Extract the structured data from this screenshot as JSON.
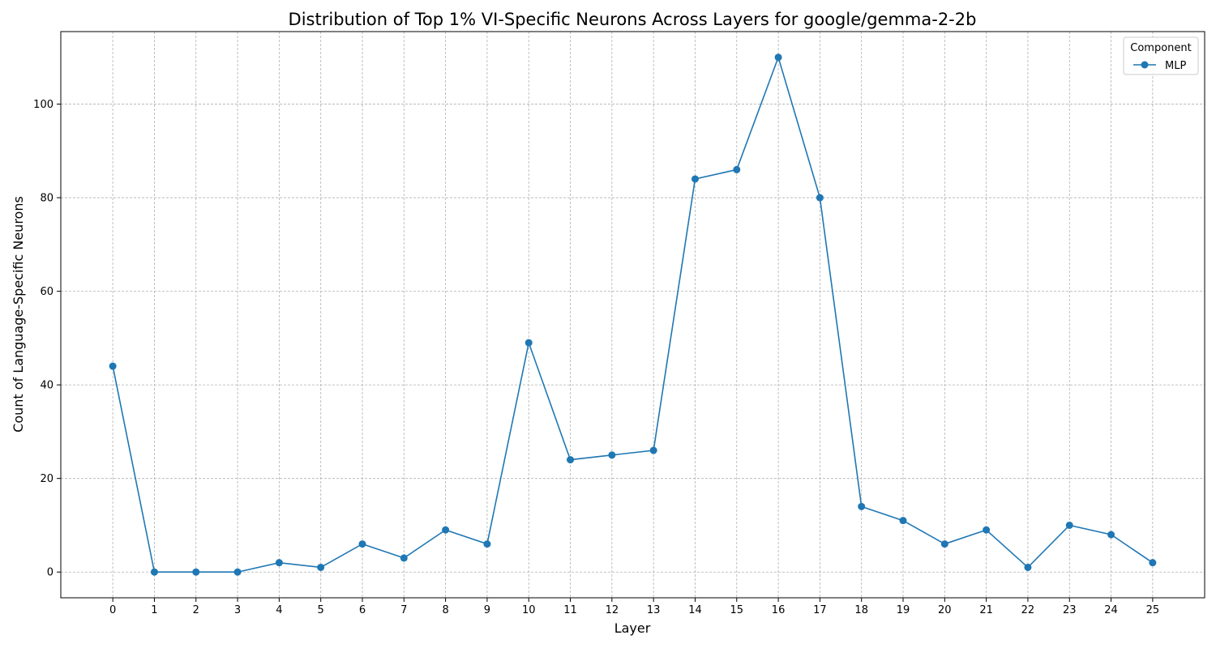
{
  "chart_data": {
    "type": "line",
    "title": "Distribution of Top 1% VI-Specific Neurons Across Layers for google/gemma-2-2b",
    "xlabel": "Layer",
    "ylabel": "Count of Language-Specific Neurons",
    "x": [
      0,
      1,
      2,
      3,
      4,
      5,
      6,
      7,
      8,
      9,
      10,
      11,
      12,
      13,
      14,
      15,
      16,
      17,
      18,
      19,
      20,
      21,
      22,
      23,
      24,
      25
    ],
    "xlim": [
      -1.25,
      26.25
    ],
    "ylim": [
      -5.5,
      115.5
    ],
    "yticks": [
      0,
      20,
      40,
      60,
      80,
      100
    ],
    "grid": true,
    "legend": {
      "title": "Component",
      "placement": "top-right"
    },
    "series": [
      {
        "name": "MLP",
        "color": "#1f77b4",
        "marker": "circle",
        "values": [
          44,
          0,
          0,
          0,
          2,
          1,
          6,
          3,
          9,
          6,
          49,
          24,
          25,
          26,
          84,
          86,
          110,
          80,
          14,
          11,
          6,
          9,
          1,
          10,
          8,
          2
        ]
      }
    ]
  }
}
